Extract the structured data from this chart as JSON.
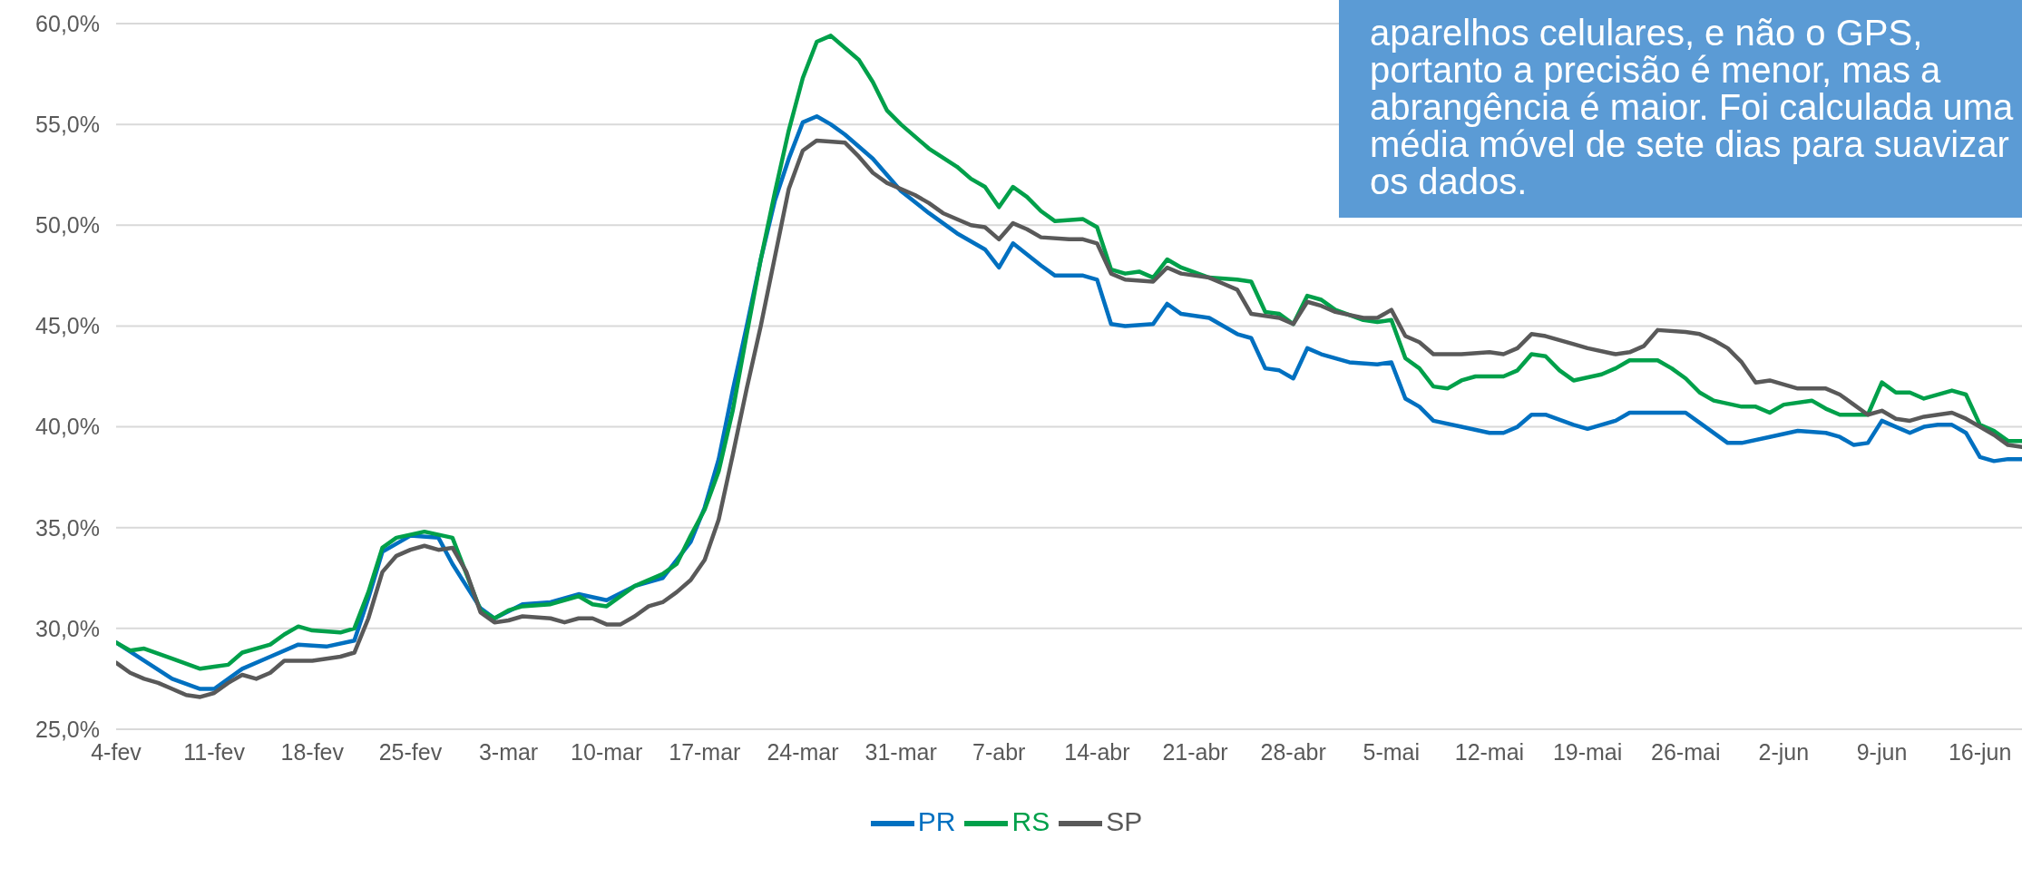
{
  "chart_data": {
    "type": "line",
    "annotations": [
      "aparelhos celulares, e não o GPS, portanto a precisão é menor, mas a abrangência é maior. Foi calculada uma média móvel de sete dias para suavizar os dados."
    ],
    "xlim": [
      "--02-04",
      "--06-19"
    ],
    "xticks": [
      {
        "value": "--02-04",
        "label": "4-fev"
      },
      {
        "value": "--02-11",
        "label": "11-fev"
      },
      {
        "value": "--02-18",
        "label": "18-fev"
      },
      {
        "value": "--02-25",
        "label": "25-fev"
      },
      {
        "value": "--03-03",
        "label": "3-mar"
      },
      {
        "value": "--03-10",
        "label": "10-mar"
      },
      {
        "value": "--03-17",
        "label": "17-mar"
      },
      {
        "value": "--03-24",
        "label": "24-mar"
      },
      {
        "value": "--03-31",
        "label": "31-mar"
      },
      {
        "value": "--04-07",
        "label": "7-abr"
      },
      {
        "value": "--04-14",
        "label": "14-abr"
      },
      {
        "value": "--04-21",
        "label": "21-abr"
      },
      {
        "value": "--04-28",
        "label": "28-abr"
      },
      {
        "value": "--05-05",
        "label": "5-mai"
      },
      {
        "value": "--05-12",
        "label": "12-mai"
      },
      {
        "value": "--05-19",
        "label": "19-mai"
      },
      {
        "value": "--05-26",
        "label": "26-mai"
      },
      {
        "value": "--06-02",
        "label": "2-jun"
      },
      {
        "value": "--06-09",
        "label": "9-jun"
      },
      {
        "value": "--06-16",
        "label": "16-jun"
      }
    ],
    "ylim": [
      25,
      60
    ],
    "yticks": [
      {
        "value": 25,
        "label": "25,0%"
      },
      {
        "value": 30,
        "label": "30,0%"
      },
      {
        "value": 35,
        "label": "35,0%"
      },
      {
        "value": 40,
        "label": "40,0%"
      },
      {
        "value": 45,
        "label": "45,0%"
      },
      {
        "value": 50,
        "label": "50,0%"
      },
      {
        "value": 55,
        "label": "55,0%"
      },
      {
        "value": 60,
        "label": "60,0%"
      }
    ],
    "grid": "y",
    "legend": "bottom",
    "marker": "none",
    "line_style": "solid",
    "series": [
      {
        "name": "PR",
        "color": "#0070c0",
        "x": [
          "--02-04",
          "--02-06",
          "--02-08",
          "--02-10",
          "--02-11",
          "--02-13",
          "--02-15",
          "--02-17",
          "--02-19",
          "--02-21",
          "--02-22",
          "--02-23",
          "--02-25",
          "--02-27",
          "--02-28",
          "--03-01",
          "--03-02",
          "--03-04",
          "--03-06",
          "--03-08",
          "--03-10",
          "--03-12",
          "--03-14",
          "--03-16",
          "--03-17",
          "--03-18",
          "--03-19",
          "--03-20",
          "--03-21",
          "--03-22",
          "--03-23",
          "--03-24",
          "--03-25",
          "--03-26",
          "--03-27",
          "--03-29",
          "--03-31",
          "--04-02",
          "--04-04",
          "--04-06",
          "--04-07",
          "--04-08",
          "--04-10",
          "--04-11",
          "--04-13",
          "--04-14",
          "--04-15",
          "--04-16",
          "--04-18",
          "--04-19",
          "--04-20",
          "--04-22",
          "--04-24",
          "--04-25",
          "--04-26",
          "--04-27",
          "--04-28",
          "--04-29",
          "--04-30",
          "--05-02",
          "--05-04",
          "--05-05",
          "--05-06",
          "--05-07",
          "--05-08",
          "--05-10",
          "--05-12",
          "--05-13",
          "--05-14",
          "--05-15",
          "--05-16",
          "--05-18",
          "--05-19",
          "--05-21",
          "--05-22",
          "--05-24",
          "--05-26",
          "--05-27",
          "--05-29",
          "--05-30",
          "--06-01",
          "--06-03",
          "--06-05",
          "--06-06",
          "--06-07",
          "--06-08",
          "--06-09",
          "--06-10",
          "--06-11",
          "--06-12",
          "--06-13",
          "--06-14",
          "--06-15",
          "--06-16",
          "--06-17",
          "--06-18",
          "--06-19"
        ],
        "values": [
          29.3,
          28.4,
          27.5,
          27.0,
          27.0,
          28.0,
          28.6,
          29.2,
          29.1,
          29.4,
          31.5,
          33.8,
          34.6,
          34.5,
          33.2,
          31.0,
          30.5,
          31.2,
          31.3,
          31.7,
          31.4,
          32.1,
          32.5,
          34.3,
          36.0,
          38.4,
          41.8,
          45.0,
          48.3,
          51.2,
          53.3,
          55.1,
          55.4,
          55.0,
          54.5,
          53.3,
          51.7,
          50.6,
          49.6,
          48.8,
          47.9,
          49.1,
          48.0,
          47.5,
          47.5,
          47.3,
          45.1,
          45.0,
          45.1,
          46.1,
          45.6,
          45.4,
          44.6,
          44.4,
          42.9,
          42.8,
          42.4,
          43.9,
          43.6,
          43.2,
          43.1,
          43.2,
          41.4,
          41.0,
          40.3,
          40.0,
          39.7,
          39.7,
          40.0,
          40.6,
          40.6,
          40.1,
          39.9,
          40.3,
          40.7,
          40.7,
          40.7,
          40.2,
          39.2,
          39.2,
          39.5,
          39.8,
          39.7,
          39.5,
          39.1,
          39.2,
          40.3,
          40.0,
          39.7,
          40.0,
          40.1,
          40.1,
          39.7,
          38.5,
          38.3,
          38.4,
          38.4
        ]
      },
      {
        "name": "RS",
        "color": "#00a04a",
        "x": [
          "--02-04",
          "--02-05",
          "--02-06",
          "--02-08",
          "--02-10",
          "--02-11",
          "--02-12",
          "--02-13",
          "--02-15",
          "--02-16",
          "--02-17",
          "--02-18",
          "--02-20",
          "--02-21",
          "--02-22",
          "--02-23",
          "--02-24",
          "--02-26",
          "--02-28",
          "--03-01",
          "--03-02",
          "--03-03",
          "--03-04",
          "--03-06",
          "--03-08",
          "--03-09",
          "--03-10",
          "--03-12",
          "--03-14",
          "--03-15",
          "--03-16",
          "--03-17",
          "--03-18",
          "--03-19",
          "--03-20",
          "--03-21",
          "--03-22",
          "--03-23",
          "--03-24",
          "--03-25",
          "--03-26",
          "--03-28",
          "--03-29",
          "--03-30",
          "--03-31",
          "--04-02",
          "--04-04",
          "--04-05",
          "--04-06",
          "--04-07",
          "--04-08",
          "--04-09",
          "--04-10",
          "--04-11",
          "--04-13",
          "--04-14",
          "--04-15",
          "--04-16",
          "--04-17",
          "--04-18",
          "--04-19",
          "--04-20",
          "--04-22",
          "--04-24",
          "--04-25",
          "--04-26",
          "--04-27",
          "--04-28",
          "--04-29",
          "--04-30",
          "--05-01",
          "--05-03",
          "--05-04",
          "--05-05",
          "--05-06",
          "--05-07",
          "--05-08",
          "--05-09",
          "--05-10",
          "--05-11",
          "--05-13",
          "--05-14",
          "--05-15",
          "--05-16",
          "--05-17",
          "--05-18",
          "--05-20",
          "--05-21",
          "--05-22",
          "--05-24",
          "--05-25",
          "--05-26",
          "--05-27",
          "--05-28",
          "--05-30",
          "--05-31",
          "--06-01",
          "--06-02",
          "--06-04",
          "--06-05",
          "--06-06",
          "--06-07",
          "--06-08",
          "--06-09",
          "--06-10",
          "--06-11",
          "--06-12",
          "--06-14",
          "--06-15",
          "--06-16",
          "--06-17",
          "--06-18",
          "--06-19"
        ],
        "values": [
          29.3,
          28.9,
          29.0,
          28.5,
          28.0,
          28.1,
          28.2,
          28.8,
          29.2,
          29.7,
          30.1,
          29.9,
          29.8,
          30.0,
          31.8,
          34.0,
          34.5,
          34.8,
          34.5,
          30.9,
          30.5,
          30.9,
          31.1,
          31.2,
          31.6,
          31.2,
          31.1,
          32.1,
          32.7,
          33.2,
          34.6,
          35.9,
          37.8,
          40.8,
          44.6,
          48.3,
          51.6,
          54.7,
          57.3,
          59.1,
          59.4,
          58.2,
          57.1,
          55.7,
          55.0,
          53.8,
          52.9,
          52.3,
          51.9,
          50.9,
          51.9,
          51.4,
          50.7,
          50.2,
          50.3,
          49.9,
          47.8,
          47.6,
          47.7,
          47.4,
          48.3,
          47.9,
          47.4,
          47.3,
          47.2,
          45.7,
          45.6,
          45.1,
          46.5,
          46.3,
          45.8,
          45.3,
          45.2,
          45.3,
          43.4,
          42.9,
          42.0,
          41.9,
          42.3,
          42.5,
          42.5,
          42.8,
          43.6,
          43.5,
          42.8,
          42.3,
          42.6,
          42.9,
          43.3,
          43.3,
          42.9,
          42.4,
          41.7,
          41.3,
          41.0,
          41.0,
          40.7,
          41.1,
          41.3,
          40.9,
          40.6,
          40.6,
          40.6,
          42.2,
          41.7,
          41.7,
          41.4,
          41.8,
          41.6,
          40.1,
          39.8,
          39.3,
          39.3
        ]
      },
      {
        "name": "SP",
        "color": "#595959",
        "x": [
          "--02-04",
          "--02-05",
          "--02-06",
          "--02-07",
          "--02-08",
          "--02-09",
          "--02-10",
          "--02-11",
          "--02-12",
          "--02-13",
          "--02-14",
          "--02-15",
          "--02-16",
          "--02-18",
          "--02-20",
          "--02-21",
          "--02-22",
          "--02-23",
          "--02-24",
          "--02-25",
          "--02-26",
          "--02-27",
          "--02-28",
          "--02-29",
          "--03-01",
          "--03-02",
          "--03-03",
          "--03-04",
          "--03-06",
          "--03-07",
          "--03-08",
          "--03-09",
          "--03-10",
          "--03-11",
          "--03-12",
          "--03-13",
          "--03-14",
          "--03-15",
          "--03-16",
          "--03-17",
          "--03-18",
          "--03-19",
          "--03-20",
          "--03-21",
          "--03-22",
          "--03-23",
          "--03-24",
          "--03-25",
          "--03-27",
          "--03-28",
          "--03-29",
          "--03-30",
          "--04-01",
          "--04-02",
          "--04-03",
          "--04-05",
          "--04-06",
          "--04-07",
          "--04-08",
          "--04-09",
          "--04-10",
          "--04-12",
          "--04-13",
          "--04-14",
          "--04-15",
          "--04-16",
          "--04-18",
          "--04-19",
          "--04-20",
          "--04-22",
          "--04-23",
          "--04-24",
          "--04-25",
          "--04-27",
          "--04-28",
          "--04-29",
          "--04-30",
          "--05-01",
          "--05-03",
          "--05-04",
          "--05-05",
          "--05-06",
          "--05-07",
          "--05-08",
          "--05-10",
          "--05-12",
          "--05-13",
          "--05-14",
          "--05-15",
          "--05-16",
          "--05-18",
          "--05-19",
          "--05-21",
          "--05-22",
          "--05-23",
          "--05-24",
          "--05-26",
          "--05-27",
          "--05-28",
          "--05-29",
          "--05-30",
          "--05-31",
          "--06-01",
          "--06-03",
          "--06-05",
          "--06-06",
          "--06-07",
          "--06-08",
          "--06-09",
          "--06-10",
          "--06-11",
          "--06-12",
          "--06-13",
          "--06-14",
          "--06-15",
          "--06-16",
          "--06-17",
          "--06-18",
          "--06-19"
        ],
        "values": [
          28.3,
          27.8,
          27.5,
          27.3,
          27.0,
          26.7,
          26.6,
          26.8,
          27.3,
          27.7,
          27.5,
          27.8,
          28.4,
          28.4,
          28.6,
          28.8,
          30.5,
          32.8,
          33.6,
          33.9,
          34.1,
          33.9,
          34.0,
          32.8,
          30.8,
          30.3,
          30.4,
          30.6,
          30.5,
          30.3,
          30.5,
          30.5,
          30.2,
          30.2,
          30.6,
          31.1,
          31.3,
          31.8,
          32.4,
          33.4,
          35.4,
          38.6,
          41.9,
          45.0,
          48.4,
          51.8,
          53.7,
          54.2,
          54.1,
          53.4,
          52.6,
          52.1,
          51.5,
          51.1,
          50.6,
          50.0,
          49.9,
          49.3,
          50.1,
          49.8,
          49.4,
          49.3,
          49.3,
          49.1,
          47.6,
          47.3,
          47.2,
          47.9,
          47.6,
          47.4,
          47.1,
          46.8,
          45.6,
          45.4,
          45.1,
          46.2,
          46.0,
          45.7,
          45.4,
          45.4,
          45.8,
          44.5,
          44.2,
          43.6,
          43.6,
          43.7,
          43.6,
          43.9,
          44.6,
          44.5,
          44.1,
          43.9,
          43.6,
          43.7,
          44.0,
          44.8,
          44.7,
          44.6,
          44.3,
          43.9,
          43.2,
          42.2,
          42.3,
          41.9,
          41.9,
          41.6,
          41.1,
          40.6,
          40.8,
          40.4,
          40.3,
          40.5,
          40.6,
          40.7,
          40.4,
          40.0,
          39.6,
          39.1,
          39.0
        ]
      }
    ]
  }
}
